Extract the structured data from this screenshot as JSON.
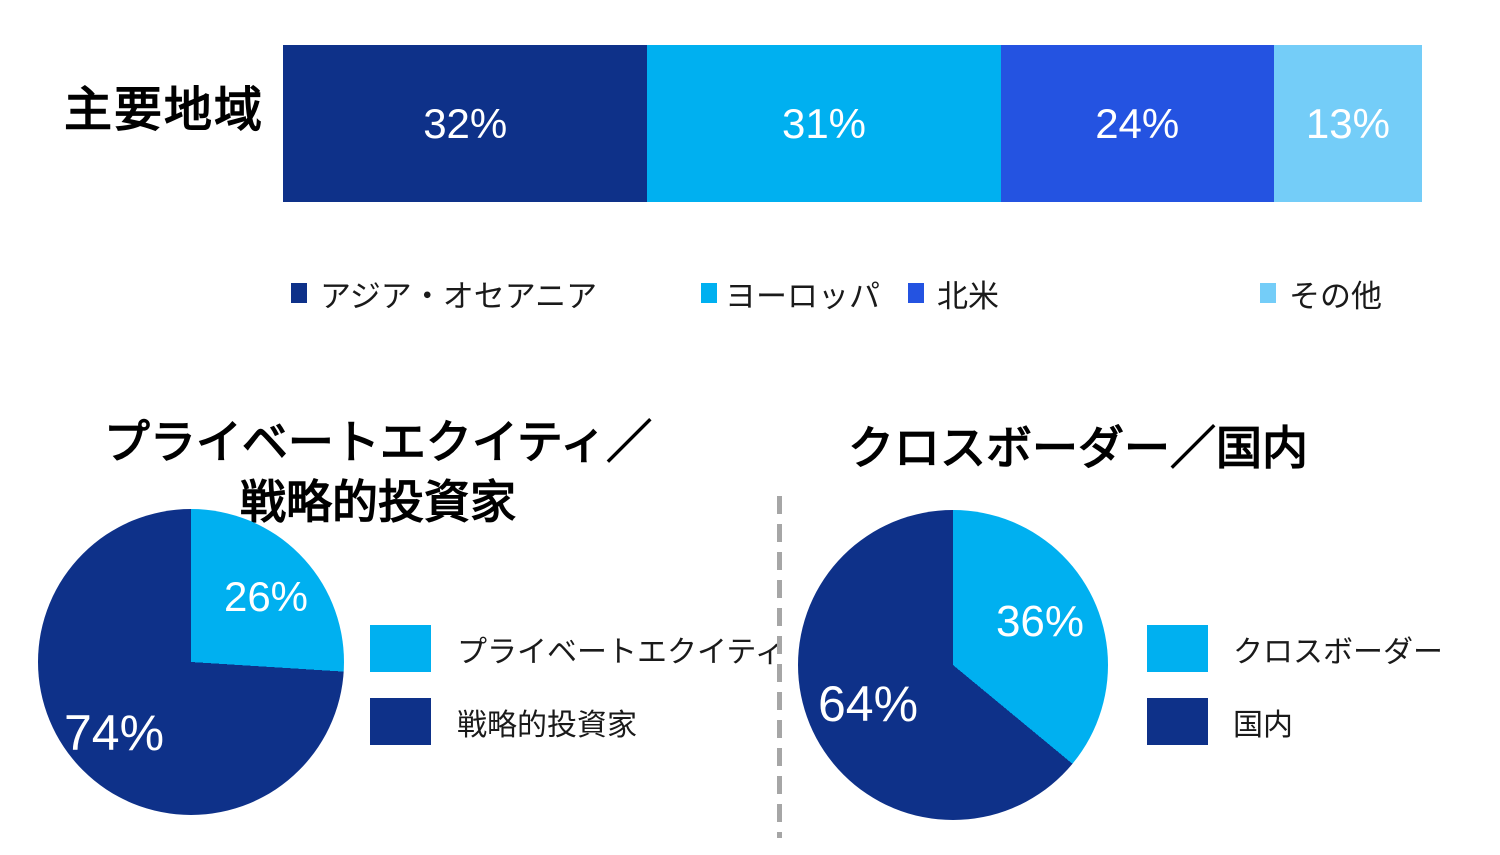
{
  "page": {
    "background": "#FFFFFF",
    "divider_color": "#A6A6A6",
    "palette": {
      "navy": "#0E3189",
      "cyan": "#00B0F0",
      "medium_blue": "#2453E1",
      "light_blue": "#74CDF8"
    }
  },
  "chart_data": [
    {
      "type": "bar",
      "subtype": "horizontal-stacked-100pct",
      "title": "主要地域",
      "categories": [
        "アジア・オセアニア",
        "ヨーロッパ",
        "北米",
        "その他"
      ],
      "values": [
        32,
        31,
        24,
        13
      ],
      "value_labels": [
        "32%",
        "31%",
        "24%",
        "13%"
      ],
      "colors": [
        "#0E3189",
        "#00B0F0",
        "#2453E1",
        "#74CDF8"
      ],
      "legend_position": "bottom",
      "grid": false
    },
    {
      "type": "pie",
      "title": "プライベートエクイティ／戦略的投資家",
      "title_lines": [
        "プライベートエクイティ／",
        "戦略的投資家"
      ],
      "categories": [
        "プライベートエクイティ",
        "戦略的投資家"
      ],
      "values": [
        26,
        74
      ],
      "value_labels": [
        "26%",
        "74%"
      ],
      "colors": [
        "#00B0F0",
        "#0E3189"
      ],
      "start_angle_deg": 0,
      "direction": "clockwise",
      "legend_position": "right",
      "grid": false
    },
    {
      "type": "pie",
      "title": "クロスボーダー／国内",
      "title_lines": [
        "クロスボーダー／国内"
      ],
      "categories": [
        "クロスボーダー",
        "国内"
      ],
      "values": [
        36,
        64
      ],
      "value_labels": [
        "36%",
        "64%"
      ],
      "colors": [
        "#00B0F0",
        "#0E3189"
      ],
      "start_angle_deg": 0,
      "direction": "clockwise",
      "legend_position": "right",
      "grid": false
    }
  ]
}
